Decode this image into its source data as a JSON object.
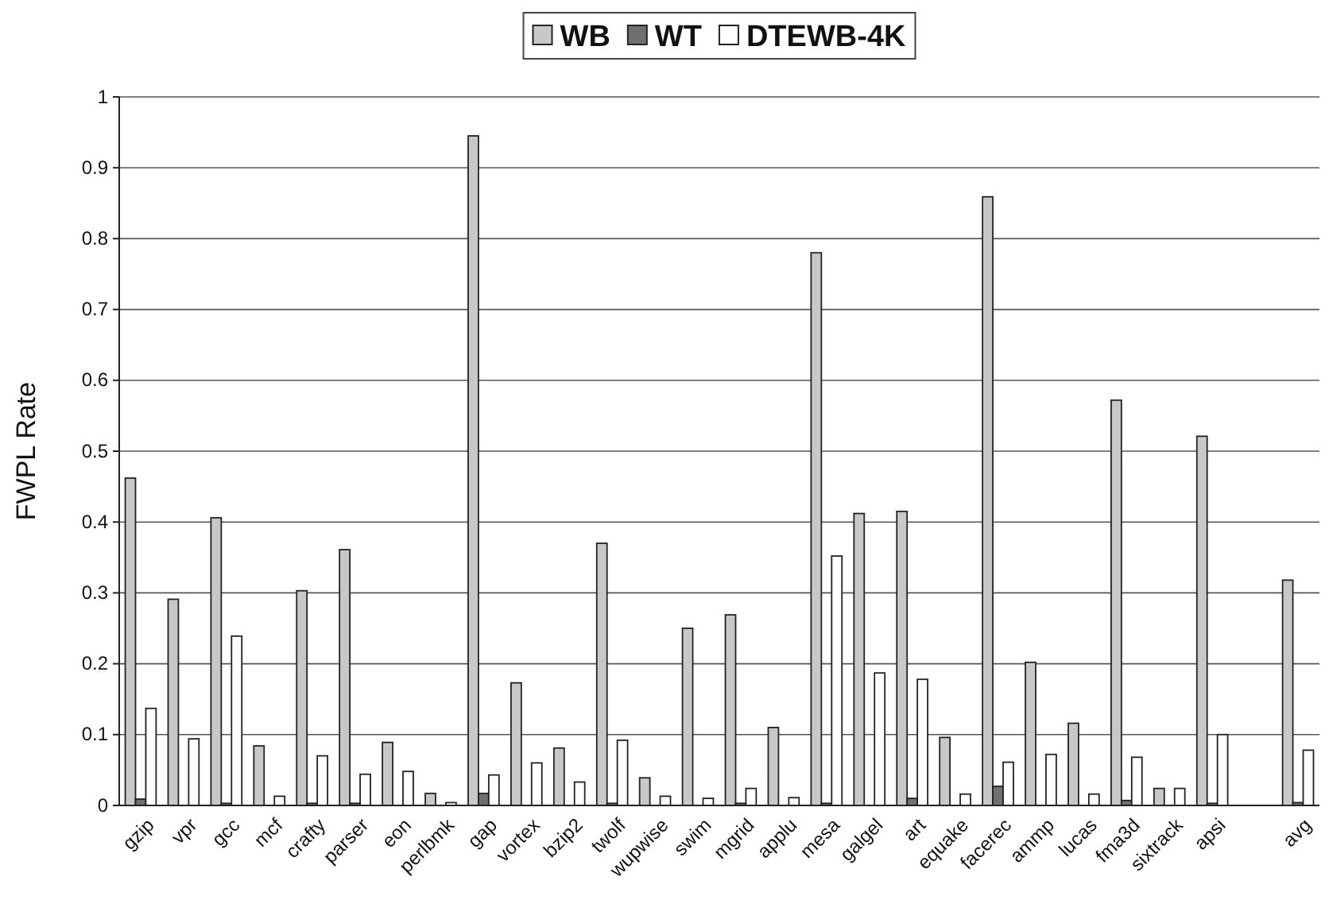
{
  "chart_data": {
    "type": "bar",
    "ylabel": "FWPL Rate",
    "categories": [
      "gzip",
      "vpr",
      "gcc",
      "mcf",
      "crafty",
      "parser",
      "eon",
      "perlbmk",
      "gap",
      "vortex",
      "bzip2",
      "twolf",
      "wupwise",
      "swim",
      "mgrid",
      "applu",
      "mesa",
      "galgel",
      "art",
      "equake",
      "facerec",
      "ammp",
      "lucas",
      "fma3d",
      "sixtrack",
      "apsi",
      null,
      "avg"
    ],
    "series": [
      {
        "name": "WB",
        "color": "#c8c8c8",
        "values": [
          0.462,
          0.291,
          0.406,
          0.084,
          0.303,
          0.361,
          0.089,
          0.017,
          0.945,
          0.173,
          0.081,
          0.37,
          0.039,
          0.25,
          0.269,
          0.11,
          0.78,
          0.412,
          0.415,
          0.096,
          0.859,
          0.202,
          0.116,
          0.572,
          0.024,
          0.521,
          null,
          0.318
        ]
      },
      {
        "name": "WT",
        "color": "#707070",
        "values": [
          0.009,
          0,
          0.003,
          0,
          0.003,
          0.003,
          0,
          0,
          0.017,
          0,
          0,
          0.003,
          0,
          0,
          0.003,
          0,
          0.003,
          0,
          0.01,
          0,
          0.027,
          0,
          0,
          0.007,
          0,
          0.003,
          null,
          0.004
        ]
      },
      {
        "name": "DTEWB-4K",
        "color": "#ffffff",
        "values": [
          0.137,
          0.094,
          0.239,
          0.013,
          0.07,
          0.044,
          0.048,
          0.004,
          0.043,
          0.06,
          0.033,
          0.092,
          0.013,
          0.01,
          0.024,
          0.011,
          0.352,
          0.187,
          0.178,
          0.016,
          0.061,
          0.072,
          0.016,
          0.068,
          0.024,
          0.1,
          null,
          0.078
        ]
      }
    ],
    "ylim": [
      0,
      1
    ],
    "yticks": [
      0,
      0.1,
      0.2,
      0.3,
      0.4,
      0.5,
      0.6,
      0.7,
      0.8,
      0.9,
      1
    ],
    "grid": "y",
    "legend": "top"
  }
}
